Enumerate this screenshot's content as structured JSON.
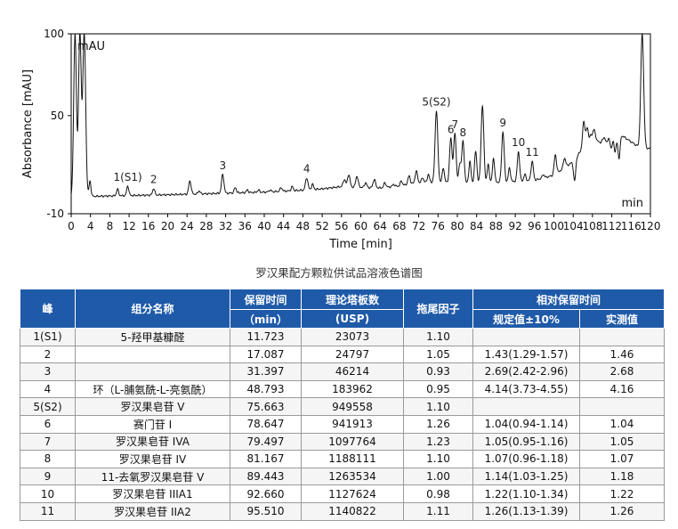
{
  "chart_data": {
    "type": "line",
    "xlabel": "Time [min]",
    "ylabel": "Absorbance [mAU]",
    "unit_label": "mAU",
    "xlim": [
      0,
      120
    ],
    "ylim": [
      -10,
      100
    ],
    "x_ticks": [
      0,
      4,
      8,
      12,
      16,
      20,
      24,
      28,
      32,
      36,
      40,
      44,
      48,
      52,
      56,
      60,
      64,
      68,
      72,
      76,
      80,
      84,
      88,
      92,
      96,
      100,
      104,
      108,
      112,
      116,
      120
    ],
    "y_ticks": [
      -10,
      50,
      100
    ],
    "x_unit_label": "min",
    "line_color": "#111111",
    "baseline": [
      [
        0,
        0
      ],
      [
        4,
        0.6
      ],
      [
        10,
        1.0
      ],
      [
        20,
        1.6
      ],
      [
        30,
        2.4
      ],
      [
        40,
        3.2
      ],
      [
        48,
        4.4
      ],
      [
        52,
        5.2
      ],
      [
        56,
        6.6
      ],
      [
        60,
        6.2
      ],
      [
        64,
        5.8
      ],
      [
        68,
        7.0
      ],
      [
        72,
        9.0
      ],
      [
        76,
        9.5
      ],
      [
        80,
        8.6
      ],
      [
        84,
        8.8
      ],
      [
        88,
        9.2
      ],
      [
        92,
        9.8
      ],
      [
        96,
        10.5
      ],
      [
        100,
        13.5
      ],
      [
        104,
        22
      ],
      [
        106,
        30
      ],
      [
        108,
        34
      ],
      [
        110,
        36
      ],
      [
        112,
        37
      ],
      [
        114,
        38
      ],
      [
        116,
        34
      ],
      [
        118,
        30
      ],
      [
        120,
        30
      ]
    ],
    "peaks": [
      {
        "x": 0.8,
        "y": 100,
        "w": 0.28
      },
      {
        "x": 1.8,
        "y": 100,
        "w": 0.28
      },
      {
        "x": 2.7,
        "y": 100,
        "w": 0.3
      },
      {
        "x": 3.9,
        "y": 10,
        "w": 0.2
      },
      {
        "x": 9.6,
        "y": 5,
        "w": 0.22
      },
      {
        "x": 11.723,
        "y": 7,
        "w": 0.22,
        "label": "1(S1)"
      },
      {
        "x": 17.087,
        "y": 5.5,
        "w": 0.22,
        "label": "2"
      },
      {
        "x": 24.6,
        "y": 10,
        "w": 0.25
      },
      {
        "x": 26.5,
        "y": 4,
        "w": 0.22
      },
      {
        "x": 31.397,
        "y": 14,
        "w": 0.25,
        "label": "3"
      },
      {
        "x": 34.0,
        "y": 6,
        "w": 0.22
      },
      {
        "x": 36.5,
        "y": 4.5,
        "w": 0.22
      },
      {
        "x": 38.8,
        "y": 4.5,
        "w": 0.22
      },
      {
        "x": 41.2,
        "y": 4.5,
        "w": 0.22
      },
      {
        "x": 43.5,
        "y": 6,
        "w": 0.22
      },
      {
        "x": 45.8,
        "y": 6.5,
        "w": 0.22
      },
      {
        "x": 48.793,
        "y": 12,
        "w": 0.25,
        "label": "4"
      },
      {
        "x": 50.0,
        "y": 8,
        "w": 0.22
      },
      {
        "x": 56.6,
        "y": 11,
        "w": 0.25
      },
      {
        "x": 57.5,
        "y": 14,
        "w": 0.25
      },
      {
        "x": 59.2,
        "y": 13,
        "w": 0.25
      },
      {
        "x": 61.0,
        "y": 9,
        "w": 0.22
      },
      {
        "x": 62.8,
        "y": 11,
        "w": 0.25
      },
      {
        "x": 65.0,
        "y": 9,
        "w": 0.22
      },
      {
        "x": 66.8,
        "y": 8,
        "w": 0.22
      },
      {
        "x": 68.4,
        "y": 10,
        "w": 0.22
      },
      {
        "x": 70.0,
        "y": 13,
        "w": 0.25
      },
      {
        "x": 71.5,
        "y": 16,
        "w": 0.25
      },
      {
        "x": 72.8,
        "y": 12,
        "w": 0.22
      },
      {
        "x": 74.0,
        "y": 14,
        "w": 0.22
      },
      {
        "x": 75.663,
        "y": 53,
        "w": 0.28,
        "label": "5(S2)"
      },
      {
        "x": 77.1,
        "y": 18,
        "w": 0.22
      },
      {
        "x": 78.647,
        "y": 36,
        "w": 0.26,
        "label": "6"
      },
      {
        "x": 79.497,
        "y": 39,
        "w": 0.26,
        "label": "7"
      },
      {
        "x": 80.5,
        "y": 20,
        "w": 0.22
      },
      {
        "x": 81.167,
        "y": 34,
        "w": 0.26,
        "label": "8"
      },
      {
        "x": 82.6,
        "y": 22,
        "w": 0.22
      },
      {
        "x": 83.8,
        "y": 28,
        "w": 0.24
      },
      {
        "x": 85.2,
        "y": 56,
        "w": 0.28
      },
      {
        "x": 86.4,
        "y": 20,
        "w": 0.22
      },
      {
        "x": 87.5,
        "y": 24,
        "w": 0.22
      },
      {
        "x": 89.443,
        "y": 40,
        "w": 0.26,
        "label": "9"
      },
      {
        "x": 90.8,
        "y": 18,
        "w": 0.22
      },
      {
        "x": 92.66,
        "y": 28,
        "w": 0.24,
        "label": "10"
      },
      {
        "x": 94.0,
        "y": 14,
        "w": 0.22
      },
      {
        "x": 95.51,
        "y": 22,
        "w": 0.24,
        "label": "11"
      },
      {
        "x": 97.8,
        "y": 14,
        "w": 0.22
      },
      {
        "x": 100.3,
        "y": 26,
        "w": 0.24
      },
      {
        "x": 102.2,
        "y": 24,
        "w": 0.24
      },
      {
        "x": 104.3,
        "y": 10,
        "w": 0.22
      },
      {
        "x": 106.2,
        "y": 46,
        "w": 0.26
      },
      {
        "x": 106.9,
        "y": 42,
        "w": 0.24
      },
      {
        "x": 107.6,
        "y": 38,
        "w": 0.24
      },
      {
        "x": 108.3,
        "y": 42,
        "w": 0.24
      },
      {
        "x": 109.0,
        "y": 35,
        "w": 0.22
      },
      {
        "x": 109.6,
        "y": 33,
        "w": 0.22
      },
      {
        "x": 110.3,
        "y": 36,
        "w": 0.22
      },
      {
        "x": 111.0,
        "y": 34,
        "w": 0.22
      },
      {
        "x": 111.9,
        "y": 30,
        "w": 0.22
      },
      {
        "x": 112.7,
        "y": 28,
        "w": 0.22
      },
      {
        "x": 113.5,
        "y": 24,
        "w": 0.22
      },
      {
        "x": 118.3,
        "y": 100,
        "w": 0.3
      }
    ]
  },
  "caption": "罗汉果配方颗粒供试品溶液色谱图",
  "table": {
    "header_fill": "#1f5aa8",
    "headers": {
      "peak": "峰",
      "component": "组分名称",
      "rt_line1": "保留时间",
      "rt_line2": "（min）",
      "plates_line1": "理论塔板数",
      "plates_line2": "(USP)",
      "tailing": "拖尾因子",
      "rrt": "相对保留时间",
      "rrt_spec": "规定值±10%",
      "rrt_measured": "实测值"
    },
    "rows": [
      {
        "peak": "1(S1)",
        "component": "5-羟甲基糠醛",
        "rt": "11.723",
        "plates": "23073",
        "tailing": "1.10",
        "spec": "",
        "measured": ""
      },
      {
        "peak": "2",
        "component": "",
        "rt": "17.087",
        "plates": "24797",
        "tailing": "1.05",
        "spec": "1.43(1.29-1.57)",
        "measured": "1.46"
      },
      {
        "peak": "3",
        "component": "",
        "rt": "31.397",
        "plates": "46214",
        "tailing": "0.93",
        "spec": "2.69(2.42-2.96)",
        "measured": "2.68"
      },
      {
        "peak": "4",
        "component": "环（L-脯氨酰-L-亮氨酰）",
        "rt": "48.793",
        "plates": "183962",
        "tailing": "0.95",
        "spec": "4.14(3.73-4.55)",
        "measured": "4.16"
      },
      {
        "peak": "5(S2)",
        "component": "罗汉果皂苷 V",
        "rt": "75.663",
        "plates": "949558",
        "tailing": "1.10",
        "spec": "",
        "measured": ""
      },
      {
        "peak": "6",
        "component": "赛门苷 I",
        "rt": "78.647",
        "plates": "941913",
        "tailing": "1.26",
        "spec": "1.04(0.94-1.14)",
        "measured": "1.04"
      },
      {
        "peak": "7",
        "component": "罗汉果皂苷 IVA",
        "rt": "79.497",
        "plates": "1097764",
        "tailing": "1.23",
        "spec": "1.05(0.95-1.16)",
        "measured": "1.05"
      },
      {
        "peak": "8",
        "component": "罗汉果皂苷 IV",
        "rt": "81.167",
        "plates": "1188111",
        "tailing": "1.10",
        "spec": "1.07(0.96-1.18)",
        "measured": "1.07"
      },
      {
        "peak": "9",
        "component": "11-去氧罗汉果皂苷 V",
        "rt": "89.443",
        "plates": "1263534",
        "tailing": "1.00",
        "spec": "1.14(1.03-1.25)",
        "measured": "1.18"
      },
      {
        "peak": "10",
        "component": "罗汉果皂苷 IIIA1",
        "rt": "92.660",
        "plates": "1127624",
        "tailing": "0.98",
        "spec": "1.22(1.10-1.34)",
        "measured": "1.22"
      },
      {
        "peak": "11",
        "component": "罗汉果皂苷 IIA2",
        "rt": "95.510",
        "plates": "1140822",
        "tailing": "1.11",
        "spec": "1.26(1.13-1.39)",
        "measured": "1.26"
      }
    ]
  }
}
